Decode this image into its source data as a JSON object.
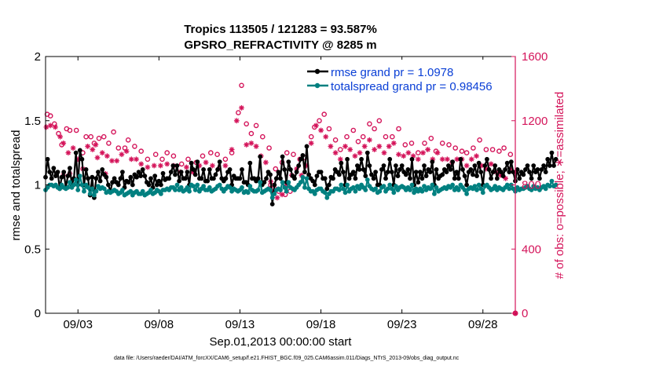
{
  "chart_data": {
    "type": "line",
    "title": "Tropics 113505 / 121283 = 93.587%",
    "subtitle": "GPSRO_REFRACTIVITY @ 8285 m",
    "xlabel": "Sep.01,2013 00:00:00 start",
    "ylabel": "rmse and totalspread",
    "ylabel_right": "# of obs: o=possible; ∗=assimilated",
    "footnote": "data file: /Users/raeder/DAI/ATM_forcXX/CAM6_setup/f.e21.FHIST_BGC.f09_025.CAM6assim.011/Diags_NTrS_2013-09/obs_diag_output.nc",
    "x_start_day": 1.0,
    "x_end_day": 30.0,
    "xticks": [
      {
        "day": 3,
        "label": "09/03"
      },
      {
        "day": 8,
        "label": "09/08"
      },
      {
        "day": 13,
        "label": "09/13"
      },
      {
        "day": 18,
        "label": "09/18"
      },
      {
        "day": 23,
        "label": "09/23"
      },
      {
        "day": 28,
        "label": "09/28"
      }
    ],
    "ylim": [
      0,
      2
    ],
    "yticks": [
      "0",
      "0.5",
      "1",
      "1.5",
      "2"
    ],
    "ylim_right": [
      0,
      1600
    ],
    "yticks_right": [
      "0",
      "400",
      "800",
      "1200",
      "1600"
    ],
    "grid": false,
    "legend_placement": "top-right",
    "colors": {
      "rmse": "#000000",
      "spread": "#008080",
      "obs": "#d4145a",
      "legend_text": "#0a3fd6",
      "right_axis": "#d4145a"
    },
    "series": [
      {
        "name": "rmse grand pr = 1.0978",
        "key": "rmse",
        "start_day": 1.0,
        "step_days": 0.125,
        "values": [
          1.06,
          1.2,
          1.1,
          1.05,
          1.13,
          1.07,
          1.1,
          0.97,
          1.06,
          1.1,
          0.98,
          1.07,
          1.13,
          1.0,
          1.05,
          1.25,
          1.0,
          1.27,
          1.2,
          1.0,
          1.12,
          1.05,
          0.92,
          1.06,
          0.9,
          1.05,
          1.1,
          1.03,
          1.12,
          1.08,
          1.06,
          1.0,
          0.95,
          1.02,
          1.05,
          1.02,
          1.0,
          1.05,
          1.1,
          0.98,
          1.03,
          1.02,
          1.06,
          1.0,
          1.08,
          1.06,
          1.1,
          1.07,
          1.12,
          1.07,
          1.02,
          1.0,
          1.05,
          0.98,
          1.07,
          1.0,
          1.03,
          1.0,
          1.09,
          1.04,
          1.05,
          1.05,
          1.1,
          1.15,
          1.08,
          1.15,
          1.03,
          1.1,
          1.05,
          1.05,
          1.1,
          1.0,
          1.17,
          1.12,
          1.08,
          1.18,
          1.05,
          1.05,
          1.12,
          1.03,
          1.03,
          1.12,
          1.05,
          1.05,
          1.08,
          1.12,
          1.18,
          1.05,
          1.03,
          1.05,
          1.1,
          1.12,
          1.0,
          1.07,
          1.05,
          1.05,
          1.05,
          1.12,
          1.02,
          1.02,
          1.0,
          1.17,
          1.05,
          1.05,
          1.03,
          1.05,
          1.22,
          1.0,
          1.02,
          1.05,
          1.1,
          1.08,
          0.85,
          1.0,
          1.05,
          1.1,
          1.05,
          1.22,
          1.12,
          1.02,
          1.18,
          1.12,
          1.07,
          1.05,
          1.1,
          1.15,
          1.2,
          1.23,
          1.1,
          1.3,
          1.08,
          1.05,
          1.03,
          1.0,
          1.07,
          1.1,
          1.1,
          1.05,
          1.05,
          0.97,
          1.0,
          1.06,
          1.05,
          1.12,
          1.1,
          1.08,
          1.17,
          1.1,
          1.0,
          1.2,
          1.05,
          1.08,
          1.1,
          1.05,
          1.15,
          1.12,
          1.2,
          1.12,
          1.07,
          1.25,
          1.15,
          1.08,
          1.05,
          1.1,
          1.0,
          1.0,
          1.12,
          1.15,
          1.05,
          1.1,
          1.2,
          1.1,
          1.0,
          1.15,
          1.07,
          1.12,
          1.15,
          1.1,
          1.08,
          1.12,
          1.05,
          1.2,
          1.0,
          1.1,
          1.02,
          1.1,
          1.05,
          1.15,
          1.07,
          1.12,
          1.1,
          1.18,
          1.0,
          1.12,
          1.05,
          1.07,
          1.08,
          1.12,
          1.1,
          1.15,
          1.12,
          1.18,
          1.05,
          1.1,
          1.05,
          1.2,
          1.12,
          1.07,
          1.0,
          1.1,
          1.12,
          1.08,
          1.15,
          1.07,
          1.17,
          1.1,
          1.0,
          1.15,
          1.2,
          1.12,
          1.05,
          1.1,
          1.15,
          1.05,
          1.12,
          1.1,
          1.07,
          1.12,
          1.17,
          1.1,
          1.18,
          1.1,
          1.03,
          1.12,
          1.05,
          1.1,
          1.08,
          1.12,
          1.15,
          1.1,
          1.05,
          1.15,
          1.1,
          1.12,
          1.05,
          1.12,
          1.15,
          1.1,
          1.2,
          1.15,
          1.25,
          1.15,
          1.2
        ]
      },
      {
        "name": "totalspread grand pr = 0.98456",
        "key": "spread",
        "start_day": 1.0,
        "step_days": 0.125,
        "values": [
          0.96,
          0.98,
          1.0,
          1.0,
          0.99,
          1.0,
          0.98,
          0.97,
          1.0,
          0.98,
          0.97,
          0.98,
          1.02,
          0.98,
          1.0,
          1.04,
          0.96,
          1.07,
          1.0,
          0.95,
          1.0,
          0.98,
          0.93,
          0.97,
          0.92,
          0.95,
          0.99,
          0.97,
          0.98,
          0.97,
          0.94,
          0.95,
          0.94,
          0.95,
          0.96,
          0.95,
          0.93,
          0.94,
          0.96,
          0.92,
          0.93,
          0.94,
          0.95,
          0.92,
          0.94,
          0.95,
          0.93,
          0.93,
          0.95,
          0.92,
          0.93,
          0.94,
          0.96,
          0.93,
          0.94,
          0.96,
          0.95,
          0.93,
          0.96,
          0.96,
          0.97,
          0.96,
          0.98,
          0.98,
          0.96,
          1.0,
          0.96,
          0.98,
          0.95,
          0.96,
          0.98,
          0.95,
          1.0,
          0.99,
          0.96,
          1.0,
          0.95,
          0.97,
          0.99,
          0.96,
          0.96,
          0.98,
          0.95,
          0.96,
          0.97,
          0.99,
          1.0,
          0.97,
          0.95,
          0.97,
          0.99,
          0.98,
          0.95,
          0.97,
          0.96,
          0.95,
          0.96,
          0.98,
          0.94,
          0.95,
          0.94,
          0.99,
          0.96,
          0.95,
          0.95,
          0.96,
          1.02,
          0.94,
          0.95,
          0.96,
          0.97,
          0.96,
          0.9,
          0.93,
          0.96,
          0.97,
          0.96,
          1.02,
          0.98,
          0.95,
          1.02,
          0.98,
          0.97,
          0.96,
          0.98,
          1.0,
          1.02,
          1.06,
          0.98,
          1.05,
          0.97,
          0.95,
          0.95,
          0.93,
          0.96,
          0.97,
          0.97,
          0.95,
          0.94,
          0.9,
          0.93,
          0.95,
          0.95,
          0.97,
          0.97,
          0.96,
          1.0,
          0.97,
          0.94,
          1.0,
          0.95,
          0.97,
          0.98,
          0.95,
          0.99,
          0.97,
          1.0,
          0.98,
          0.96,
          1.04,
          0.99,
          0.97,
          0.96,
          0.97,
          0.94,
          0.95,
          0.98,
          0.99,
          0.95,
          0.97,
          1.0,
          0.97,
          0.94,
          0.99,
          0.96,
          0.98,
          0.99,
          0.98,
          0.96,
          0.98,
          0.96,
          1.0,
          0.94,
          0.97,
          0.95,
          0.97,
          0.95,
          0.99,
          0.96,
          0.98,
          0.97,
          1.0,
          0.93,
          0.98,
          0.95,
          0.96,
          0.97,
          0.98,
          0.97,
          0.99,
          0.98,
          1.0,
          0.96,
          0.98,
          0.96,
          1.0,
          0.98,
          0.96,
          0.93,
          0.97,
          0.98,
          0.97,
          0.99,
          0.96,
          1.0,
          0.97,
          0.94,
          0.99,
          1.0,
          0.98,
          0.96,
          0.97,
          0.99,
          0.96,
          0.98,
          0.97,
          0.96,
          0.98,
          1.0,
          0.97,
          1.0,
          0.97,
          0.95,
          0.98,
          0.96,
          0.97,
          0.97,
          0.98,
          0.99,
          0.97,
          0.96,
          0.99,
          0.97,
          0.98,
          0.96,
          0.98,
          0.99,
          0.97,
          1.0,
          0.99,
          1.03,
          0.99,
          1.0
        ]
      }
    ],
    "obs_possible": {
      "axis": "right",
      "marker": "circle",
      "points": [
        [
          1.1,
          1240
        ],
        [
          1.3,
          1230
        ],
        [
          1.55,
          1180
        ],
        [
          1.8,
          1120
        ],
        [
          2.0,
          1050
        ],
        [
          2.3,
          1150
        ],
        [
          2.5,
          1140
        ],
        [
          2.9,
          1140
        ],
        [
          3.3,
          1000
        ],
        [
          3.5,
          1100
        ],
        [
          3.8,
          1100
        ],
        [
          4.0,
          1060
        ],
        [
          4.3,
          1090
        ],
        [
          4.6,
          1100
        ],
        [
          4.9,
          1060
        ],
        [
          5.2,
          1130
        ],
        [
          5.5,
          1030
        ],
        [
          5.9,
          1030
        ],
        [
          6.1,
          1080
        ],
        [
          6.5,
          1040
        ],
        [
          6.9,
          1010
        ],
        [
          7.3,
          960
        ],
        [
          7.8,
          990
        ],
        [
          8.2,
          960
        ],
        [
          8.5,
          1000
        ],
        [
          8.9,
          980
        ],
        [
          9.4,
          930
        ],
        [
          9.8,
          960
        ],
        [
          10.3,
          940
        ],
        [
          10.7,
          980
        ],
        [
          11.2,
          1000
        ],
        [
          11.6,
          990
        ],
        [
          12.1,
          960
        ],
        [
          12.5,
          1000
        ],
        [
          12.9,
          1250
        ],
        [
          13.1,
          1420
        ],
        [
          13.4,
          1180
        ],
        [
          13.7,
          1120
        ],
        [
          14.0,
          1170
        ],
        [
          14.4,
          1100
        ],
        [
          14.8,
          1030
        ],
        [
          15.2,
          900
        ],
        [
          15.6,
          940
        ],
        [
          15.9,
          1000
        ],
        [
          16.3,
          990
        ],
        [
          16.7,
          960
        ],
        [
          17.0,
          970
        ],
        [
          17.4,
          1100
        ],
        [
          17.6,
          1160
        ],
        [
          17.9,
          1200
        ],
        [
          18.2,
          1240
        ],
        [
          18.5,
          1150
        ],
        [
          18.9,
          1080
        ],
        [
          19.2,
          1020
        ],
        [
          19.6,
          1100
        ],
        [
          20.0,
          1140
        ],
        [
          20.3,
          1070
        ],
        [
          20.6,
          1100
        ],
        [
          21.0,
          1180
        ],
        [
          21.3,
          1150
        ],
        [
          21.6,
          1200
        ],
        [
          22.0,
          1100
        ],
        [
          22.4,
          1100
        ],
        [
          22.8,
          1150
        ],
        [
          23.2,
          1050
        ],
        [
          23.6,
          1060
        ],
        [
          24.0,
          1000
        ],
        [
          24.4,
          1060
        ],
        [
          24.8,
          1090
        ],
        [
          25.1,
          1010
        ],
        [
          25.5,
          1060
        ],
        [
          25.9,
          1050
        ],
        [
          26.3,
          1030
        ],
        [
          26.7,
          1010
        ],
        [
          27.0,
          1000
        ],
        [
          27.4,
          1030
        ],
        [
          27.8,
          1080
        ],
        [
          28.2,
          1020
        ],
        [
          28.6,
          1020
        ],
        [
          29.0,
          1010
        ],
        [
          29.3,
          1030
        ],
        [
          29.7,
          990
        ],
        [
          15.1,
          780
        ],
        [
          15.4,
          760
        ],
        [
          15.8,
          740
        ],
        [
          14.9,
          800
        ],
        [
          16.1,
          760
        ]
      ]
    },
    "obs_assimilated": {
      "axis": "right",
      "marker": "asterisk",
      "points": [
        [
          1.05,
          1160
        ],
        [
          1.3,
          1170
        ],
        [
          1.6,
          1160
        ],
        [
          1.9,
          1100
        ],
        [
          2.1,
          1060
        ],
        [
          2.4,
          1000
        ],
        [
          2.7,
          1030
        ],
        [
          3.0,
          960
        ],
        [
          3.3,
          900
        ],
        [
          3.6,
          1040
        ],
        [
          3.9,
          1020
        ],
        [
          4.2,
          970
        ],
        [
          4.5,
          1000
        ],
        [
          4.8,
          980
        ],
        [
          5.1,
          950
        ],
        [
          5.4,
          950
        ],
        [
          5.7,
          990
        ],
        [
          6.0,
          1010
        ],
        [
          6.3,
          960
        ],
        [
          6.6,
          960
        ],
        [
          6.9,
          930
        ],
        [
          7.3,
          910
        ],
        [
          7.7,
          920
        ],
        [
          8.1,
          920
        ],
        [
          8.5,
          930
        ],
        [
          8.9,
          920
        ],
        [
          9.3,
          880
        ],
        [
          9.7,
          910
        ],
        [
          10.1,
          880
        ],
        [
          10.5,
          920
        ],
        [
          10.9,
          940
        ],
        [
          11.3,
          920
        ],
        [
          11.7,
          900
        ],
        [
          12.1,
          920
        ],
        [
          12.5,
          1020
        ],
        [
          12.8,
          1200
        ],
        [
          13.1,
          1280
        ],
        [
          13.4,
          1050
        ],
        [
          13.7,
          1060
        ],
        [
          14.0,
          1040
        ],
        [
          14.3,
          980
        ],
        [
          14.6,
          940
        ],
        [
          14.9,
          820
        ],
        [
          15.1,
          760
        ],
        [
          15.3,
          720
        ],
        [
          15.6,
          740
        ],
        [
          15.9,
          800
        ],
        [
          16.2,
          860
        ],
        [
          16.5,
          900
        ],
        [
          16.8,
          860
        ],
        [
          17.1,
          920
        ],
        [
          17.4,
          1060
        ],
        [
          17.7,
          1170
        ],
        [
          18.0,
          1140
        ],
        [
          18.3,
          1100
        ],
        [
          18.6,
          1040
        ],
        [
          18.9,
          1000
        ],
        [
          19.2,
          960
        ],
        [
          19.5,
          1040
        ],
        [
          19.8,
          1020
        ],
        [
          20.1,
          980
        ],
        [
          20.4,
          1000
        ],
        [
          20.7,
          1040
        ],
        [
          21.0,
          1080
        ],
        [
          21.3,
          1020
        ],
        [
          21.6,
          1040
        ],
        [
          21.9,
          1000
        ],
        [
          22.2,
          1040
        ],
        [
          22.5,
          1060
        ],
        [
          22.8,
          990
        ],
        [
          23.1,
          980
        ],
        [
          23.4,
          1000
        ],
        [
          23.7,
          980
        ],
        [
          24.0,
          960
        ],
        [
          24.3,
          1000
        ],
        [
          24.6,
          1020
        ],
        [
          24.9,
          960
        ],
        [
          25.2,
          1000
        ],
        [
          25.5,
          960
        ],
        [
          25.8,
          960
        ],
        [
          26.1,
          940
        ],
        [
          26.4,
          960
        ],
        [
          26.7,
          960
        ],
        [
          27.0,
          920
        ],
        [
          27.3,
          960
        ],
        [
          27.6,
          980
        ],
        [
          27.9,
          920
        ],
        [
          28.2,
          900
        ],
        [
          28.5,
          930
        ],
        [
          28.8,
          880
        ],
        [
          29.1,
          860
        ],
        [
          29.4,
          840
        ],
        [
          29.7,
          900
        ],
        [
          30.0,
          880
        ],
        [
          2.5,
          870
        ],
        [
          2.1,
          860
        ],
        [
          4.1,
          1050
        ],
        [
          4.7,
          870
        ]
      ]
    },
    "obs_endpoint": {
      "day": 30.0,
      "value": 0
    }
  }
}
